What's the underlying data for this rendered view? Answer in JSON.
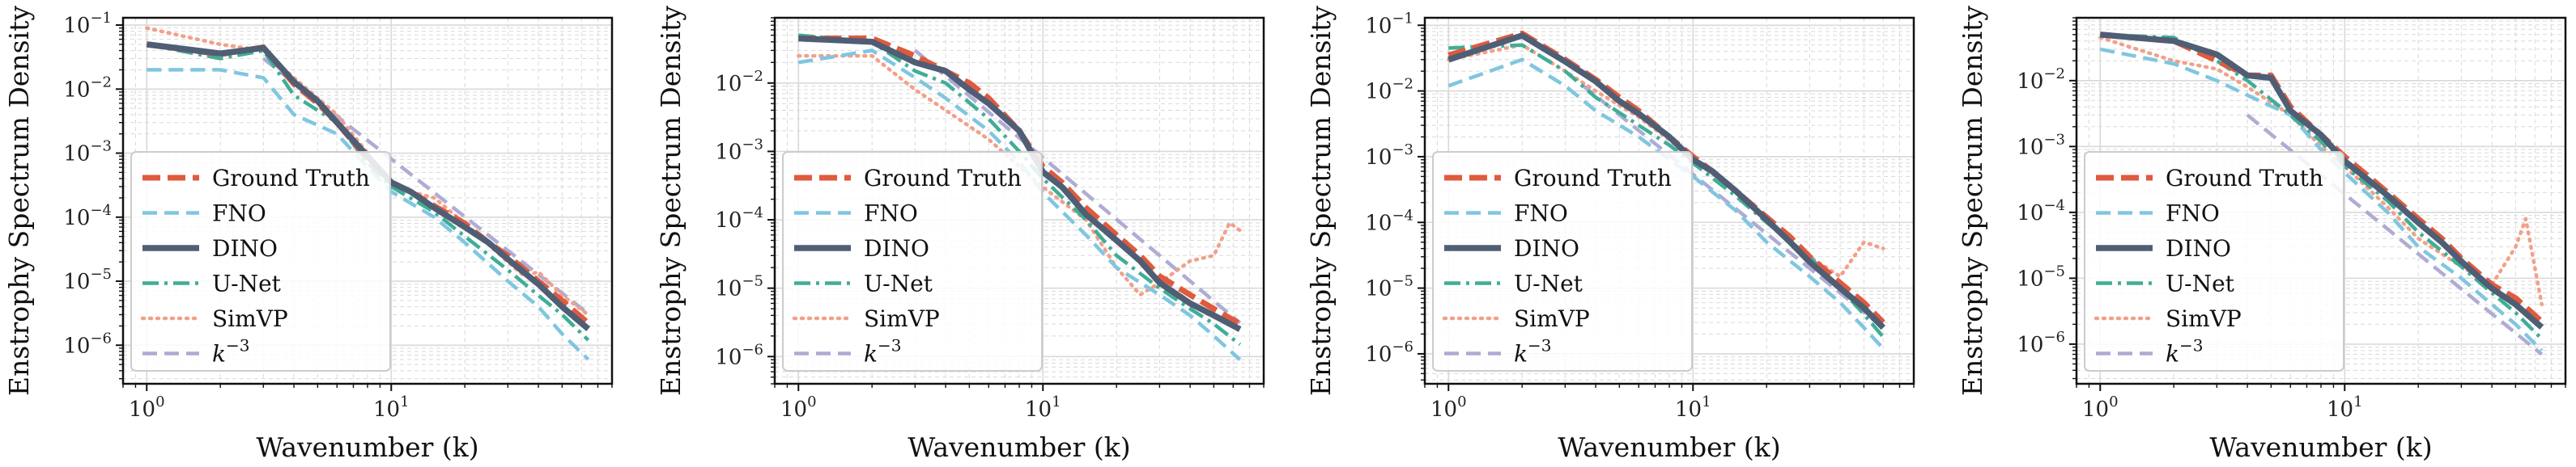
{
  "chart_data": [
    {
      "type": "line",
      "xscale": "log",
      "yscale": "log",
      "xlabel": "Wavenumber (k)",
      "ylabel": "Enstrophy Spectrum Density",
      "xlim": [
        0.8,
        80
      ],
      "ylim": [
        2.5e-07,
        0.13
      ],
      "xticks": [
        {
          "v": 1,
          "e": "0"
        },
        {
          "v": 10,
          "e": "1"
        }
      ],
      "yticks": [
        {
          "v": 1e-06,
          "e": "−6"
        },
        {
          "v": 1e-05,
          "e": "−5"
        },
        {
          "v": 0.0001,
          "e": "−4"
        },
        {
          "v": 0.001,
          "e": "−3"
        },
        {
          "v": 0.01,
          "e": "−2"
        },
        {
          "v": 0.1,
          "e": "−1"
        }
      ],
      "legend_position": "lower-left",
      "series": [
        {
          "name": "Ground Truth",
          "key": "gt",
          "x": [
            1,
            2,
            3,
            4,
            5,
            6,
            8,
            10,
            12,
            15,
            20,
            25,
            30,
            40,
            50,
            64
          ],
          "y": [
            0.05,
            0.035,
            0.045,
            0.012,
            0.006,
            0.003,
            0.0008,
            0.00035,
            0.00025,
            0.00015,
            8e-05,
            4e-05,
            2.5e-05,
            1e-05,
            5e-06,
            2.2e-06
          ]
        },
        {
          "name": "FNO",
          "key": "fno",
          "x": [
            1,
            2,
            3,
            4,
            6,
            8,
            10,
            15,
            20,
            30,
            40,
            50,
            64
          ],
          "y": [
            0.02,
            0.02,
            0.015,
            0.004,
            0.002,
            0.0006,
            0.00025,
            0.0001,
            4e-05,
            1e-05,
            4e-06,
            1.5e-06,
            6e-07
          ]
        },
        {
          "name": "DINO",
          "key": "dino",
          "x": [
            1,
            2,
            3,
            4,
            5,
            6,
            8,
            10,
            12,
            15,
            20,
            25,
            30,
            40,
            50,
            64
          ],
          "y": [
            0.05,
            0.036,
            0.044,
            0.013,
            0.0065,
            0.003,
            0.0009,
            0.00035,
            0.00025,
            0.00014,
            7e-05,
            4e-05,
            2.2e-05,
            9e-06,
            4e-06,
            1.8e-06
          ]
        },
        {
          "name": "U-Net",
          "key": "unet",
          "x": [
            1,
            2,
            3,
            4,
            6,
            8,
            10,
            15,
            20,
            30,
            40,
            50,
            64
          ],
          "y": [
            0.05,
            0.03,
            0.04,
            0.008,
            0.003,
            0.0007,
            0.0003,
            0.00012,
            5e-05,
            1.5e-05,
            6e-06,
            3e-06,
            1.2e-06
          ]
        },
        {
          "name": "SimVP",
          "key": "simvp",
          "x": [
            1,
            2,
            3,
            4,
            6,
            8,
            10,
            15,
            20,
            30,
            35,
            40,
            50,
            64
          ],
          "y": [
            0.09,
            0.05,
            0.04,
            0.015,
            0.004,
            0.001,
            0.0003,
            0.0002,
            8e-05,
            2e-05,
            1.2e-05,
            1.4e-05,
            6e-06,
            3e-06
          ]
        },
        {
          "name": "k^{-3}",
          "key": "k3",
          "x": [
            3,
            64
          ],
          "y": [
            0.03,
            3.1e-06
          ]
        }
      ]
    },
    {
      "type": "line",
      "xscale": "log",
      "yscale": "log",
      "xlabel": "Wavenumber (k)",
      "ylabel": "Enstrophy Spectrum Density",
      "xlim": [
        0.8,
        80
      ],
      "ylim": [
        4e-07,
        0.09
      ],
      "xticks": [
        {
          "v": 1,
          "e": "0"
        },
        {
          "v": 10,
          "e": "1"
        }
      ],
      "yticks": [
        {
          "v": 1e-06,
          "e": "−6"
        },
        {
          "v": 1e-05,
          "e": "−5"
        },
        {
          "v": 0.0001,
          "e": "−4"
        },
        {
          "v": 0.001,
          "e": "−3"
        },
        {
          "v": 0.01,
          "e": "−2"
        }
      ],
      "legend_position": "lower-left",
      "series": [
        {
          "name": "Ground Truth",
          "key": "gt",
          "x": [
            1,
            2,
            3,
            4,
            5,
            6,
            8,
            10,
            12,
            15,
            20,
            25,
            30,
            40,
            50,
            64
          ],
          "y": [
            0.045,
            0.045,
            0.025,
            0.015,
            0.01,
            0.006,
            0.002,
            0.0006,
            0.00035,
            0.00015,
            6e-05,
            3e-05,
            1.5e-05,
            8e-06,
            5e-06,
            3e-06
          ]
        },
        {
          "name": "FNO",
          "key": "fno",
          "x": [
            1,
            2,
            3,
            4,
            6,
            8,
            10,
            15,
            20,
            30,
            40,
            50,
            64
          ],
          "y": [
            0.02,
            0.03,
            0.012,
            0.006,
            0.002,
            0.0007,
            0.00025,
            6e-05,
            2e-05,
            8e-06,
            4e-06,
            2e-06,
            9e-07
          ]
        },
        {
          "name": "DINO",
          "key": "dino",
          "x": [
            1,
            2,
            3,
            4,
            5,
            6,
            8,
            10,
            12,
            15,
            20,
            25,
            30,
            40,
            50,
            64
          ],
          "y": [
            0.045,
            0.04,
            0.02,
            0.015,
            0.008,
            0.005,
            0.002,
            0.0005,
            0.0003,
            0.00012,
            5e-05,
            2.5e-05,
            1.2e-05,
            6e-06,
            4e-06,
            2.5e-06
          ]
        },
        {
          "name": "U-Net",
          "key": "unet",
          "x": [
            1,
            2,
            3,
            4,
            6,
            8,
            10,
            15,
            20,
            30,
            40,
            50,
            64
          ],
          "y": [
            0.05,
            0.04,
            0.015,
            0.01,
            0.003,
            0.001,
            0.0004,
            0.0001,
            3e-05,
            1e-05,
            5e-06,
            3e-06,
            1.5e-06
          ]
        },
        {
          "name": "SimVP",
          "key": "simvp",
          "x": [
            1,
            2,
            3,
            4,
            6,
            8,
            10,
            15,
            20,
            25,
            30,
            40,
            50,
            58,
            64
          ],
          "y": [
            0.025,
            0.025,
            0.008,
            0.004,
            0.0015,
            0.0006,
            0.0003,
            0.0001,
            2e-05,
            8e-06,
            1.2e-05,
            2.5e-05,
            3e-05,
            9e-05,
            7e-05
          ]
        },
        {
          "name": "k^{-3}",
          "key": "k3",
          "x": [
            3,
            64
          ],
          "y": [
            0.03,
            3.1e-06
          ]
        }
      ]
    },
    {
      "type": "line",
      "xscale": "log",
      "yscale": "log",
      "xlabel": "Wavenumber (k)",
      "ylabel": "Enstrophy Spectrum Density",
      "xlim": [
        0.8,
        80
      ],
      "ylim": [
        3.5e-07,
        0.13
      ],
      "xticks": [
        {
          "v": 1,
          "e": "0"
        },
        {
          "v": 10,
          "e": "1"
        }
      ],
      "yticks": [
        {
          "v": 1e-06,
          "e": "−6"
        },
        {
          "v": 1e-05,
          "e": "−5"
        },
        {
          "v": 0.0001,
          "e": "−4"
        },
        {
          "v": 0.001,
          "e": "−3"
        },
        {
          "v": 0.01,
          "e": "−2"
        },
        {
          "v": 0.1,
          "e": "−1"
        }
      ],
      "legend_position": "lower-left",
      "series": [
        {
          "name": "Ground Truth",
          "key": "gt",
          "x": [
            1,
            2,
            3,
            4,
            5,
            6,
            8,
            10,
            12,
            15,
            20,
            25,
            30,
            40,
            50,
            60
          ],
          "y": [
            0.035,
            0.075,
            0.03,
            0.015,
            0.008,
            0.005,
            0.002,
            0.001,
            0.0006,
            0.0003,
            0.00012,
            6e-05,
            3e-05,
            1.2e-05,
            6e-06,
            3e-06
          ]
        },
        {
          "name": "FNO",
          "key": "fno",
          "x": [
            1,
            2,
            3,
            4,
            6,
            8,
            10,
            15,
            20,
            30,
            40,
            50,
            60
          ],
          "y": [
            0.012,
            0.03,
            0.012,
            0.005,
            0.002,
            0.0009,
            0.0005,
            0.00015,
            5e-05,
            1.5e-05,
            6e-06,
            2.5e-06,
            1.2e-06
          ]
        },
        {
          "name": "DINO",
          "key": "dino",
          "x": [
            1,
            2,
            3,
            4,
            5,
            6,
            8,
            10,
            12,
            15,
            20,
            25,
            30,
            40,
            50,
            60
          ],
          "y": [
            0.03,
            0.07,
            0.028,
            0.014,
            0.007,
            0.0045,
            0.002,
            0.0009,
            0.0006,
            0.0003,
            0.00011,
            5e-05,
            2.5e-05,
            1e-05,
            5e-06,
            2.5e-06
          ]
        },
        {
          "name": "U-Net",
          "key": "unet",
          "x": [
            1,
            2,
            3,
            4,
            6,
            8,
            10,
            15,
            20,
            30,
            40,
            50,
            60
          ],
          "y": [
            0.045,
            0.05,
            0.02,
            0.008,
            0.003,
            0.0015,
            0.0008,
            0.00025,
            0.0001,
            3e-05,
            1e-05,
            4e-06,
            1.8e-06
          ]
        },
        {
          "name": "SimVP",
          "key": "simvp",
          "x": [
            1,
            2,
            3,
            4,
            6,
            8,
            10,
            15,
            20,
            30,
            40,
            50,
            60
          ],
          "y": [
            0.03,
            0.05,
            0.02,
            0.01,
            0.004,
            0.0018,
            0.0009,
            0.0003,
            0.0001,
            3e-05,
            1.5e-05,
            5e-05,
            4e-05
          ]
        },
        {
          "name": "k^{-3}",
          "key": "k3",
          "x": [
            3,
            60
          ],
          "y": [
            0.02,
            2.5e-06
          ]
        }
      ]
    },
    {
      "type": "line",
      "xscale": "log",
      "yscale": "log",
      "xlabel": "Wavenumber (k)",
      "ylabel": "Enstrophy Spectrum Density",
      "xlim": [
        0.8,
        80
      ],
      "ylim": [
        2.5e-07,
        0.09
      ],
      "xticks": [
        {
          "v": 1,
          "e": "0"
        },
        {
          "v": 10,
          "e": "1"
        }
      ],
      "yticks": [
        {
          "v": 1e-06,
          "e": "−6"
        },
        {
          "v": 1e-05,
          "e": "−5"
        },
        {
          "v": 0.0001,
          "e": "−4"
        },
        {
          "v": 0.001,
          "e": "−3"
        },
        {
          "v": 0.01,
          "e": "−2"
        }
      ],
      "legend_position": "lower-left",
      "series": [
        {
          "name": "Ground Truth",
          "key": "gt",
          "x": [
            1,
            2,
            3,
            4,
            5,
            6,
            8,
            10,
            12,
            15,
            20,
            25,
            30,
            40,
            50,
            64
          ],
          "y": [
            0.05,
            0.04,
            0.02,
            0.012,
            0.012,
            0.004,
            0.0015,
            0.0007,
            0.0004,
            0.0002,
            8e-05,
            4e-05,
            2e-05,
            8e-06,
            5e-06,
            2.2e-06
          ]
        },
        {
          "name": "FNO",
          "key": "fno",
          "x": [
            1,
            2,
            3,
            4,
            6,
            8,
            10,
            15,
            20,
            30,
            40,
            50,
            64
          ],
          "y": [
            0.03,
            0.018,
            0.01,
            0.006,
            0.003,
            0.0009,
            0.0004,
            0.0001,
            3e-05,
            1e-05,
            4e-06,
            2e-06,
            8e-07
          ]
        },
        {
          "name": "DINO",
          "key": "dino",
          "x": [
            1,
            2,
            3,
            4,
            5,
            6,
            8,
            10,
            12,
            15,
            20,
            25,
            30,
            40,
            50,
            64
          ],
          "y": [
            0.05,
            0.04,
            0.025,
            0.012,
            0.011,
            0.0035,
            0.0015,
            0.0006,
            0.00035,
            0.00018,
            7e-05,
            3.5e-05,
            1.8e-05,
            7e-06,
            4e-06,
            1.8e-06
          ]
        },
        {
          "name": "U-Net",
          "key": "unet",
          "x": [
            1,
            2,
            3,
            4,
            6,
            8,
            10,
            15,
            20,
            30,
            40,
            50,
            64
          ],
          "y": [
            0.05,
            0.045,
            0.02,
            0.01,
            0.003,
            0.0012,
            0.0005,
            0.00015,
            5e-05,
            1.5e-05,
            6e-06,
            3e-06,
            1.2e-06
          ]
        },
        {
          "name": "SimVP",
          "key": "simvp",
          "x": [
            1,
            2,
            3,
            4,
            6,
            8,
            10,
            15,
            20,
            30,
            40,
            50,
            55,
            64
          ],
          "y": [
            0.045,
            0.02,
            0.015,
            0.008,
            0.003,
            0.001,
            0.0005,
            0.00012,
            4e-05,
            1.5e-05,
            8e-06,
            3e-05,
            8e-05,
            4e-06
          ]
        },
        {
          "name": "k^{-3}",
          "key": "k3",
          "x": [
            4,
            64
          ],
          "y": [
            0.003,
            7e-07
          ]
        }
      ]
    }
  ],
  "legend": {
    "items": [
      {
        "key": "gt",
        "label": "Ground Truth"
      },
      {
        "key": "fno",
        "label": "FNO"
      },
      {
        "key": "dino",
        "label": "DINO"
      },
      {
        "key": "unet",
        "label": "U-Net"
      },
      {
        "key": "simvp",
        "label": "SimVP"
      },
      {
        "key": "k3",
        "label": "k",
        "sup": "−3",
        "italic": true
      }
    ]
  },
  "tick_base": "10",
  "colors": {
    "gt": "#e05a3e",
    "fno": "#7fc6e0",
    "dino": "#4f5e74",
    "unet": "#3fae96",
    "simvp": "#f2a08a",
    "k3": "#a6a3cf",
    "grid": "#d9d9d9",
    "axis": "#111111"
  }
}
